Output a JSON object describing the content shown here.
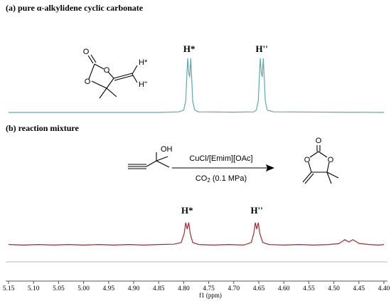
{
  "chart_data": [
    {
      "type": "line",
      "title": "(a) pure α-alkylidene cyclic carbonate",
      "structure": [
        "O",
        "O",
        "O",
        "H*",
        "H''"
      ],
      "annotations": [
        {
          "text": "H*",
          "x": 4.789
        },
        {
          "text": "H''",
          "x": 4.644
        }
      ],
      "xlim": [
        5.15,
        4.4
      ],
      "ylim": [
        0,
        100
      ],
      "x": [
        5.15,
        4.85,
        4.81,
        4.8,
        4.796,
        4.794,
        4.792,
        4.79,
        4.788,
        4.786,
        4.784,
        4.782,
        4.778,
        4.77,
        4.7,
        4.66,
        4.655,
        4.651,
        4.649,
        4.647,
        4.645,
        4.643,
        4.641,
        4.639,
        4.637,
        4.633,
        4.62,
        4.4
      ],
      "series": [
        {
          "color": "#5aaab2",
          "values": [
            0,
            0,
            1,
            4,
            20,
            60,
            95,
            70,
            62,
            95,
            60,
            20,
            4,
            1,
            0.5,
            1,
            4,
            20,
            60,
            95,
            70,
            62,
            95,
            60,
            20,
            4,
            1,
            0
          ]
        }
      ]
    },
    {
      "type": "line",
      "title": "(b) reaction mixture",
      "scheme": {
        "reactant": [
          "OH"
        ],
        "conditions": [
          "CuCl/[Emim][OAc]",
          "CO",
          "2",
          " (0.1 MPa)"
        ],
        "product": [
          "O",
          "O",
          "O"
        ]
      },
      "annotations": [
        {
          "text": "H*",
          "x": 4.793
        },
        {
          "text": "H''",
          "x": 4.654
        }
      ],
      "xlim": [
        5.15,
        4.4
      ],
      "ylim": [
        0,
        100
      ],
      "xticks": [
        5.15,
        {
          "value": 5.1,
          "label": "5.10"
        },
        5.05,
        {
          "value": 5.0,
          "label": "5.00"
        },
        4.95,
        {
          "value": 4.9,
          "label": "4.90"
        },
        4.85,
        {
          "value": 4.8,
          "label": "4.80"
        },
        4.75,
        {
          "value": 4.7,
          "label": "4.70"
        },
        4.65,
        {
          "value": 4.6,
          "label": "4.60"
        },
        4.55,
        {
          "value": 4.5,
          "label": "4.50"
        },
        4.45,
        {
          "value": 4.4,
          "label": "4.40"
        }
      ],
      "xlabel": "f1 (ppm)",
      "x": [
        5.15,
        5.12,
        5.09,
        5.06,
        5.03,
        5.0,
        4.97,
        4.94,
        4.91,
        4.88,
        4.85,
        4.82,
        4.805,
        4.799,
        4.796,
        4.793,
        4.79,
        4.787,
        4.782,
        4.77,
        4.74,
        4.71,
        4.68,
        4.665,
        4.66,
        4.657,
        4.654,
        4.651,
        4.648,
        4.642,
        4.63,
        4.6,
        4.57,
        4.54,
        4.51,
        4.49,
        4.478,
        4.47,
        4.462,
        4.45,
        4.43,
        4.41,
        4.4
      ],
      "series": [
        {
          "color": "#a32a30",
          "values": [
            1,
            -1,
            1,
            -1,
            1,
            -1,
            1,
            -1,
            1,
            -1,
            1,
            2,
            8,
            40,
            78,
            55,
            78,
            40,
            8,
            1,
            -1,
            1,
            -1,
            8,
            40,
            78,
            55,
            78,
            40,
            8,
            1,
            -1,
            1,
            -1,
            1,
            4,
            18,
            10,
            18,
            5,
            1,
            -1,
            1
          ]
        }
      ]
    }
  ]
}
